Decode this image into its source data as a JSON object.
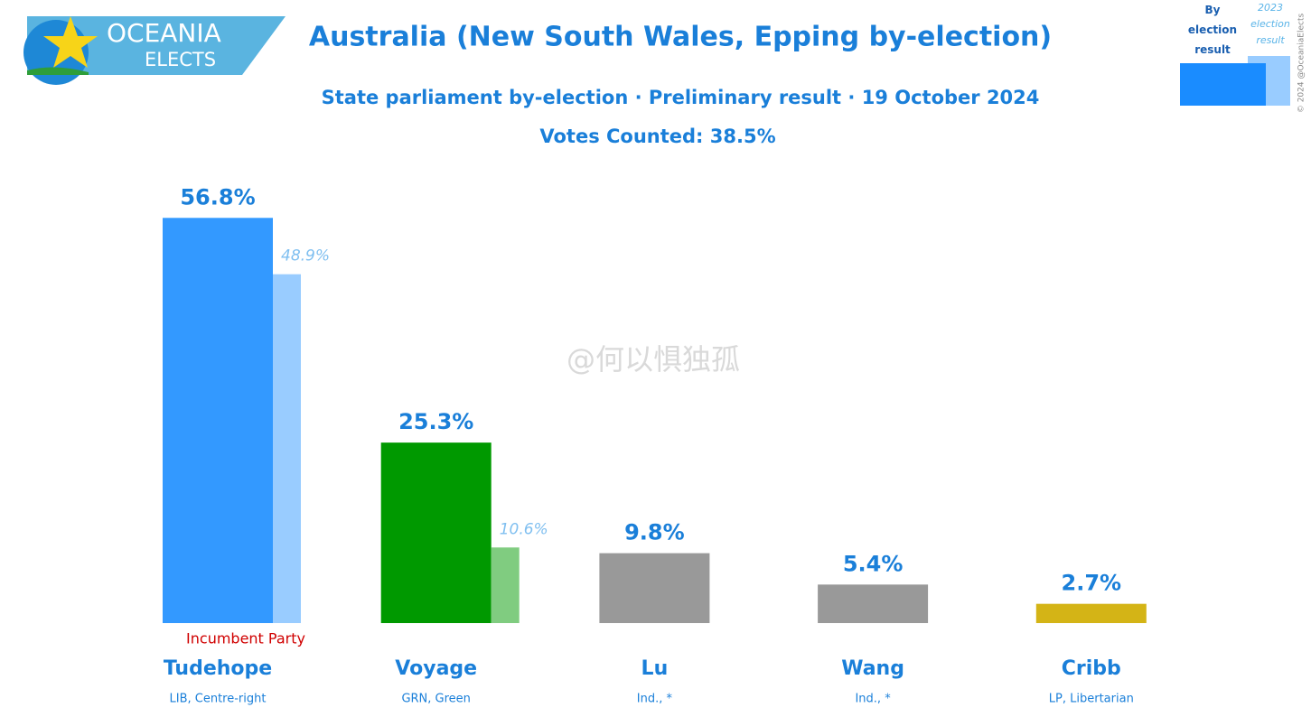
{
  "logo": {
    "line1": "OCEANIA",
    "line2": "ELECTS"
  },
  "watermark": "@何以惧独孤",
  "copyright": "© 2024 @OceaniaElects",
  "chart_data": {
    "type": "bar",
    "title": "Australia (New South Wales, Epping by-election)",
    "subtitle": "State parliament by-election · Preliminary result · 19 October 2024",
    "note": "Votes Counted: 38.5%",
    "categories": [
      "Tudehope",
      "Voyage",
      "Lu",
      "Wang",
      "Cribb"
    ],
    "sublabels": [
      "LIB, Centre-right",
      "GRN, Green",
      "Ind., *",
      "Ind., *",
      "LP, Libertarian"
    ],
    "annotation": "Incumbent Party",
    "series": [
      {
        "name": "By election result",
        "color": "#1a8cff",
        "colors": [
          "#3399ff",
          "#009900",
          "#999999",
          "#999999",
          "#d4b416"
        ],
        "values": [
          56.8,
          25.3,
          9.8,
          5.4,
          2.7
        ],
        "value_labels": [
          "56.8%",
          "25.3%",
          "9.8%",
          "5.4%",
          "2.7%"
        ]
      },
      {
        "name": "2023 election result",
        "color": "#99ccff",
        "colors": [
          "#99ccff",
          "#80cc80",
          null,
          null,
          null
        ],
        "values": [
          48.9,
          10.6,
          null,
          null,
          null
        ],
        "value_labels": [
          "48.9%",
          "10.6%",
          null,
          null,
          null
        ]
      }
    ]
  }
}
